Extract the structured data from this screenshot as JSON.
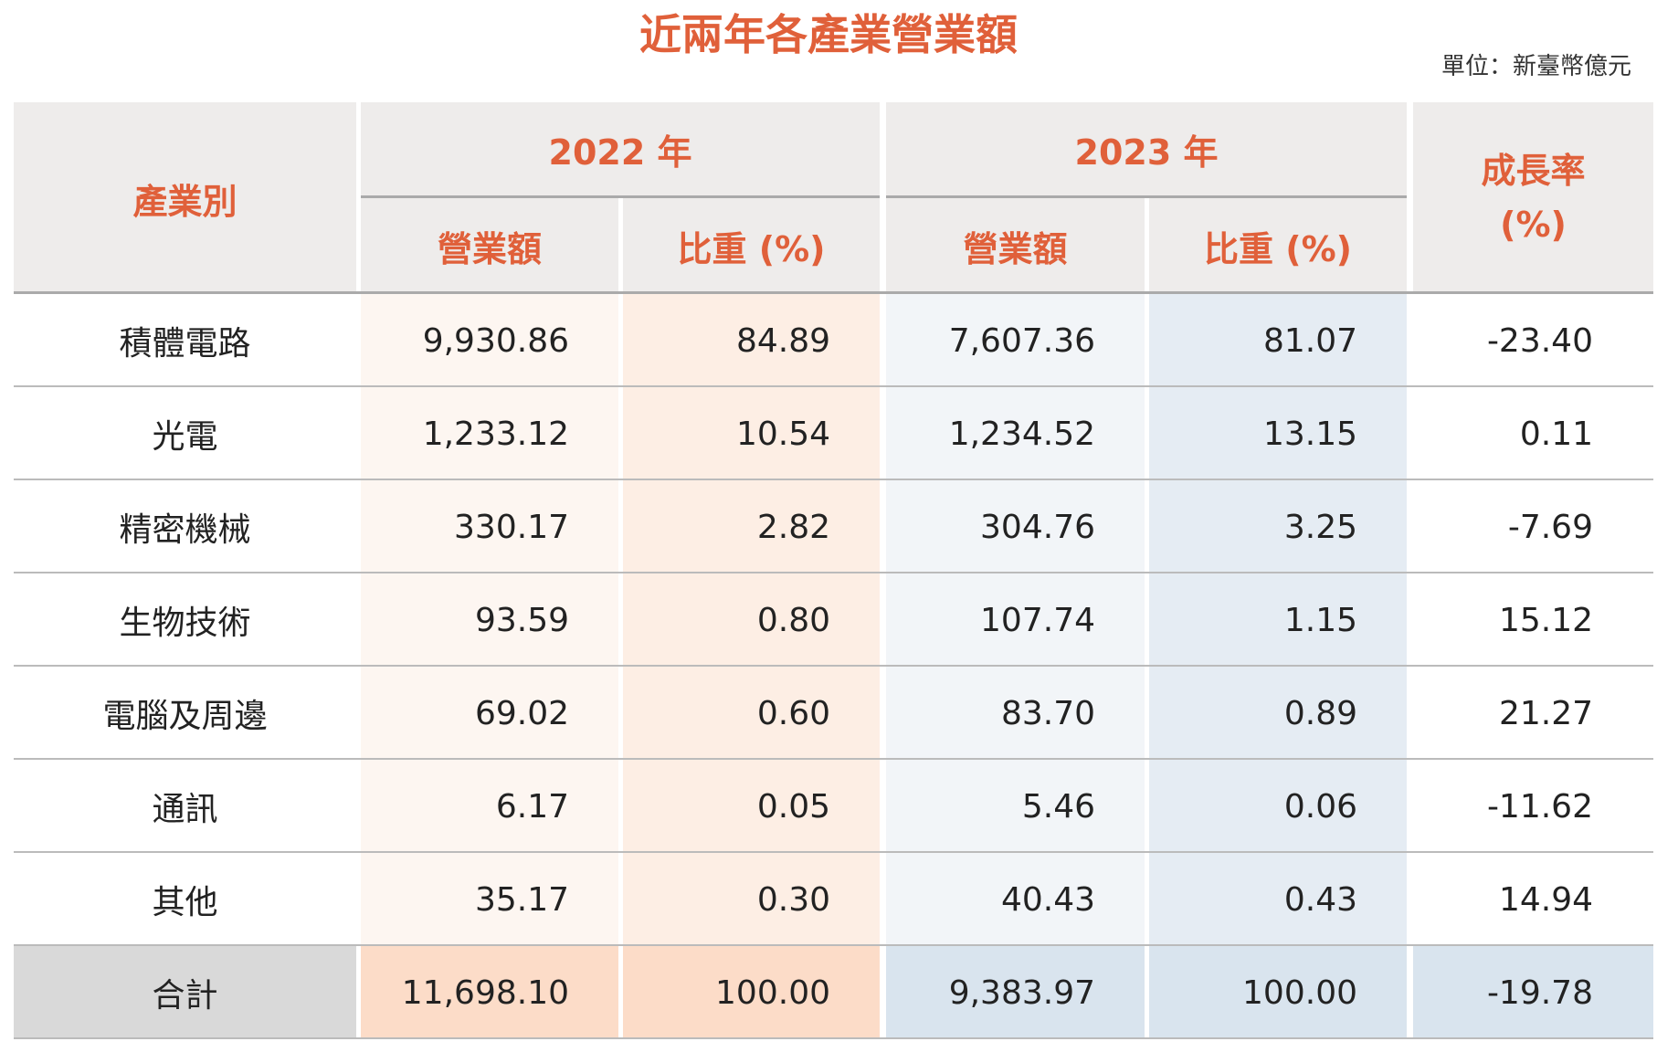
{
  "title": "近兩年各產業營業額",
  "unit": "單位：新臺幣億元",
  "header": {
    "industry": "產業別",
    "years": [
      "2022 年",
      "2023 年"
    ],
    "sub": [
      "營業額",
      "比重 (%)",
      "營業額",
      "比重 (%)"
    ],
    "growth": [
      "成長率",
      "(%)"
    ]
  },
  "rows": [
    [
      "積體電路",
      "9,930.86",
      "84.89",
      "7,607.36",
      "81.07",
      "-23.40"
    ],
    [
      "光電",
      "1,233.12",
      "10.54",
      "1,234.52",
      "13.15",
      "0.11"
    ],
    [
      "精密機械",
      "330.17",
      "2.82",
      "304.76",
      "3.25",
      "-7.69"
    ],
    [
      "生物技術",
      "93.59",
      "0.80",
      "107.74",
      "1.15",
      "15.12"
    ],
    [
      "電腦及周邊",
      "69.02",
      "0.60",
      "83.70",
      "0.89",
      "21.27"
    ],
    [
      "通訊",
      "6.17",
      "0.05",
      "5.46",
      "0.06",
      "-11.62"
    ],
    [
      "其他",
      "35.17",
      "0.30",
      "40.43",
      "0.43",
      "14.94"
    ]
  ],
  "total": [
    "合計",
    "11,698.10",
    "100.00",
    "9,383.97",
    "100.00",
    "-19.78"
  ]
}
